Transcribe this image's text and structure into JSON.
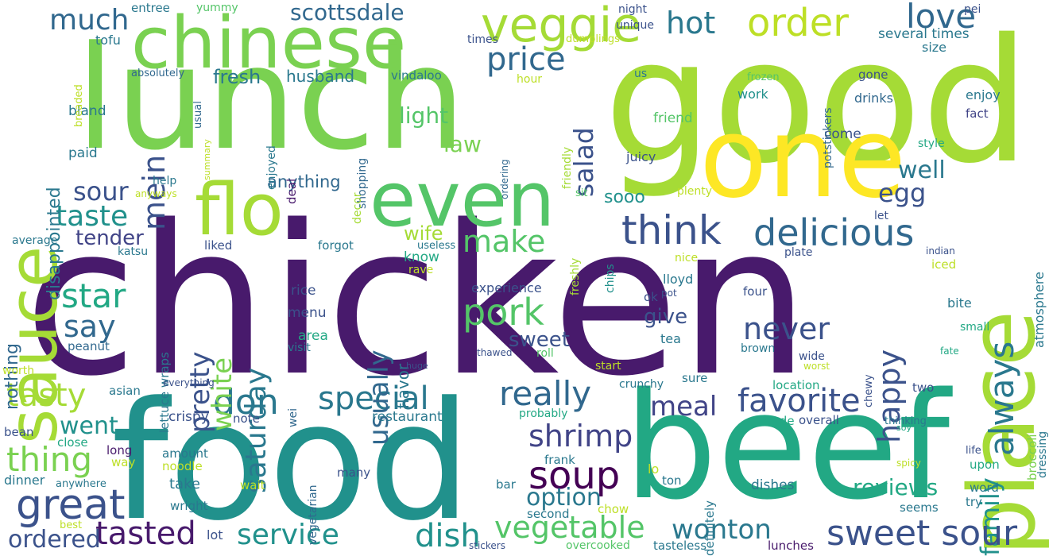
{
  "words": [
    {
      "text": "chicken",
      "color": "#481a6c",
      "weight": 1.0
    },
    {
      "text": "food",
      "color": "#21918c",
      "weight": 0.75
    },
    {
      "text": "good",
      "color": "#a5db36",
      "weight": 0.72
    },
    {
      "text": "lunch",
      "color": "#7ad151",
      "weight": 0.65
    },
    {
      "text": "beef",
      "color": "#22a884",
      "weight": 0.6
    },
    {
      "text": "one",
      "color": "#fde725",
      "weight": 0.5
    },
    {
      "text": "place",
      "color": "#a5db36",
      "weight": 0.45
    },
    {
      "text": "chinese",
      "color": "#7ad151",
      "weight": 0.38
    },
    {
      "text": "sauce",
      "color": "#a5db36",
      "weight": 0.35
    },
    {
      "text": "even",
      "color": "#54c568",
      "weight": 0.36
    },
    {
      "text": "flo",
      "color": "#a5db36",
      "weight": 0.32
    },
    {
      "text": "veggie",
      "color": "#a5db36",
      "weight": 0.2
    },
    {
      "text": "order",
      "color": "#bddf26",
      "weight": 0.18
    },
    {
      "text": "love",
      "color": "#31688e",
      "weight": 0.16
    },
    {
      "text": "hot",
      "color": "#2a788e",
      "weight": 0.14
    },
    {
      "text": "much",
      "color": "#31688e",
      "weight": 0.12
    },
    {
      "text": "scottsdale",
      "color": "#31688e",
      "weight": 0.1
    },
    {
      "text": "price",
      "color": "#31688e",
      "weight": 0.14
    },
    {
      "text": "think",
      "color": "#3b528b",
      "weight": 0.18
    },
    {
      "text": "delicious",
      "color": "#31688e",
      "weight": 0.18
    },
    {
      "text": "egg",
      "color": "#3b528b",
      "weight": 0.14
    },
    {
      "text": "mein",
      "color": "#3b528b",
      "weight": 0.12
    },
    {
      "text": "salad",
      "color": "#3b528b",
      "weight": 0.12
    },
    {
      "text": "light",
      "color": "#54c568",
      "weight": 0.1
    },
    {
      "text": "law",
      "color": "#7ad151",
      "weight": 0.1
    },
    {
      "text": "fresh",
      "color": "#2a788e",
      "weight": 0.09
    },
    {
      "text": "husband",
      "color": "#2a788e",
      "weight": 0.08
    },
    {
      "text": "sour",
      "color": "#3b528b",
      "weight": 0.12
    },
    {
      "text": "taste",
      "color": "#21918c",
      "weight": 0.14
    },
    {
      "text": "tender",
      "color": "#414487",
      "weight": 0.1
    },
    {
      "text": "star",
      "color": "#22a884",
      "weight": 0.15
    },
    {
      "text": "say",
      "color": "#31688e",
      "weight": 0.14
    },
    {
      "text": "make",
      "color": "#54c568",
      "weight": 0.14
    },
    {
      "text": "pork",
      "color": "#54c568",
      "weight": 0.18
    },
    {
      "text": "really",
      "color": "#31688e",
      "weight": 0.17
    },
    {
      "text": "favorite",
      "color": "#3b528b",
      "weight": 0.17
    },
    {
      "text": "tasty",
      "color": "#a5db36",
      "weight": 0.15
    },
    {
      "text": "don",
      "color": "#2a788e",
      "weight": 0.18
    },
    {
      "text": "special",
      "color": "#2a788e",
      "weight": 0.16
    },
    {
      "text": "meal",
      "color": "#414487",
      "weight": 0.13
    },
    {
      "text": "thing",
      "color": "#7ad151",
      "weight": 0.18
    },
    {
      "text": "great",
      "color": "#3b528b",
      "weight": 0.2
    },
    {
      "text": "shrimp",
      "color": "#414487",
      "weight": 0.16
    },
    {
      "text": "soup",
      "color": "#440154",
      "weight": 0.18
    },
    {
      "text": "family",
      "color": "#21918c",
      "weight": 0.14
    },
    {
      "text": "tasted",
      "color": "#481a6c",
      "weight": 0.15
    },
    {
      "text": "service",
      "color": "#21918c",
      "weight": 0.14
    },
    {
      "text": "dish",
      "color": "#21918c",
      "weight": 0.15
    },
    {
      "text": "vegetable",
      "color": "#54c568",
      "weight": 0.14
    },
    {
      "text": "wonton",
      "color": "#2a788e",
      "weight": 0.14
    },
    {
      "text": "sweet sour",
      "color": "#3b528b",
      "weight": 0.18
    },
    {
      "text": "option",
      "color": "#2a788e",
      "weight": 0.1
    },
    {
      "text": "reviews",
      "color": "#22a884",
      "weight": 0.1
    },
    {
      "text": "never",
      "color": "#3b528b",
      "weight": 0.15
    },
    {
      "text": "happy",
      "color": "#3b528b",
      "weight": 0.14
    },
    {
      "text": "always",
      "color": "#2a788e",
      "weight": 0.13
    },
    {
      "text": "saturday",
      "color": "#2a788e",
      "weight": 0.13
    },
    {
      "text": "usually",
      "color": "#31688e",
      "weight": 0.13
    },
    {
      "text": "pretty",
      "color": "#3b528b",
      "weight": 0.12
    },
    {
      "text": "white",
      "color": "#7ad151",
      "weight": 0.12
    },
    {
      "text": "ordered",
      "color": "#3b528b",
      "weight": 0.1
    },
    {
      "text": "went",
      "color": "#21918c",
      "weight": 0.12
    },
    {
      "text": "well",
      "color": "#2a788e",
      "weight": 0.1
    },
    {
      "text": "sweet",
      "color": "#3b528b",
      "weight": 0.1
    },
    {
      "text": "give",
      "color": "#3b528b",
      "weight": 0.09
    },
    {
      "text": "flavor",
      "color": "#2a788e",
      "weight": 0.08
    },
    {
      "text": "wife",
      "color": "#a5db36",
      "weight": 0.09
    },
    {
      "text": "sooo",
      "color": "#21918c",
      "weight": 0.08
    },
    {
      "text": "anything",
      "color": "#31688e",
      "weight": 0.07
    },
    {
      "text": "disappointed",
      "color": "#2a788e",
      "weight": 0.08
    },
    {
      "text": "nothing",
      "color": "#31688e",
      "weight": 0.08
    },
    {
      "text": "bland",
      "color": "#2a788e",
      "weight": 0.06
    },
    {
      "text": "paid",
      "color": "#2a788e",
      "weight": 0.06
    },
    {
      "text": "tofu",
      "color": "#2a788e",
      "weight": 0.06
    },
    {
      "text": "entree",
      "color": "#2a788e",
      "weight": 0.06
    },
    {
      "text": "yummy",
      "color": "#54c568",
      "weight": 0.06
    },
    {
      "text": "breaded",
      "color": "#bddf26",
      "weight": 0.05
    },
    {
      "text": "absolutely",
      "color": "#31688e",
      "weight": 0.05
    },
    {
      "text": "usual",
      "color": "#31688e",
      "weight": 0.05
    },
    {
      "text": "vindaloo",
      "color": "#2a788e",
      "weight": 0.06
    },
    {
      "text": "hour",
      "color": "#bddf26",
      "weight": 0.05
    },
    {
      "text": "night",
      "color": "#3b528b",
      "weight": 0.05
    },
    {
      "text": "unique",
      "color": "#3b528b",
      "weight": 0.05
    },
    {
      "text": "times",
      "color": "#3b528b",
      "weight": 0.05
    },
    {
      "text": "dumplings",
      "color": "#bddf26",
      "weight": 0.05
    },
    {
      "text": "several times",
      "color": "#2a788e",
      "weight": 0.06
    },
    {
      "text": "size",
      "color": "#2a788e",
      "weight": 0.06
    },
    {
      "text": "pei",
      "color": "#3b528b",
      "weight": 0.05
    },
    {
      "text": "frozen",
      "color": "#54c568",
      "weight": 0.05
    },
    {
      "text": "gone",
      "color": "#3b528b",
      "weight": 0.05
    },
    {
      "text": "drinks",
      "color": "#31688e",
      "weight": 0.06
    },
    {
      "text": "enjoy",
      "color": "#2a788e",
      "weight": 0.06
    },
    {
      "text": "fact",
      "color": "#414487",
      "weight": 0.05
    },
    {
      "text": "style",
      "color": "#22a884",
      "weight": 0.05
    },
    {
      "text": "us",
      "color": "#2a788e",
      "weight": 0.05
    },
    {
      "text": "work",
      "color": "#21918c",
      "weight": 0.06
    },
    {
      "text": "friend",
      "color": "#54c568",
      "weight": 0.06
    },
    {
      "text": "come",
      "color": "#3b528b",
      "weight": 0.06
    },
    {
      "text": "juicy",
      "color": "#3b528b",
      "weight": 0.06
    },
    {
      "text": "potstickers",
      "color": "#31688e",
      "weight": 0.05
    },
    {
      "text": "friendly",
      "color": "#a5db36",
      "weight": 0.05
    },
    {
      "text": "ordering",
      "color": "#31688e",
      "weight": 0.04
    },
    {
      "text": "shopping",
      "color": "#31688e",
      "weight": 0.05
    },
    {
      "text": "decor",
      "color": "#a5db36",
      "weight": 0.05
    },
    {
      "text": "enjoyed",
      "color": "#2a788e",
      "weight": 0.05
    },
    {
      "text": "deal",
      "color": "#481a6c",
      "weight": 0.06
    },
    {
      "text": "summary",
      "color": "#bddf26",
      "weight": 0.04
    },
    {
      "text": "help",
      "color": "#2a788e",
      "weight": 0.05
    },
    {
      "text": "anyways",
      "color": "#bddf26",
      "weight": 0.04
    },
    {
      "text": "average",
      "color": "#2a788e",
      "weight": 0.05
    },
    {
      "text": "katsu",
      "color": "#2a788e",
      "weight": 0.05
    },
    {
      "text": "liked",
      "color": "#3b528b",
      "weight": 0.05
    },
    {
      "text": "forgot",
      "color": "#2a788e",
      "weight": 0.05
    },
    {
      "text": "know",
      "color": "#22a884",
      "weight": 0.06
    },
    {
      "text": "rave",
      "color": "#bddf26",
      "weight": 0.05
    },
    {
      "text": "useless",
      "color": "#2a788e",
      "weight": 0.05
    },
    {
      "text": "rice",
      "color": "#3b528b",
      "weight": 0.06
    },
    {
      "text": "menu",
      "color": "#3b528b",
      "weight": 0.06
    },
    {
      "text": "area",
      "color": "#22a884",
      "weight": 0.06
    },
    {
      "text": "visit",
      "color": "#2a788e",
      "weight": 0.05
    },
    {
      "text": "lettuce wraps",
      "color": "#2a788e",
      "weight": 0.06
    },
    {
      "text": "peanut",
      "color": "#31688e",
      "weight": 0.05
    },
    {
      "text": "worth",
      "color": "#bddf26",
      "weight": 0.05
    },
    {
      "text": "asian",
      "color": "#2a788e",
      "weight": 0.05
    },
    {
      "text": "everything",
      "color": "#3b528b",
      "weight": 0.04
    },
    {
      "text": "experience",
      "color": "#3b528b",
      "weight": 0.06
    },
    {
      "text": "tea",
      "color": "#2a788e",
      "weight": 0.06
    },
    {
      "text": "thawed",
      "color": "#3b528b",
      "weight": 0.05
    },
    {
      "text": "roll",
      "color": "#54c568",
      "weight": 0.05
    },
    {
      "text": "huge",
      "color": "#3b528b",
      "weight": 0.04
    },
    {
      "text": "start",
      "color": "#bddf26",
      "weight": 0.05
    },
    {
      "text": "crunchy",
      "color": "#2a788e",
      "weight": 0.05
    },
    {
      "text": "sure",
      "color": "#2a788e",
      "weight": 0.06
    },
    {
      "text": "freshly",
      "color": "#a5db36",
      "weight": 0.05
    },
    {
      "text": "sit",
      "color": "#54c568",
      "weight": 0.05
    },
    {
      "text": "chips",
      "color": "#21918c",
      "weight": 0.05
    },
    {
      "text": "plenty",
      "color": "#bddf26",
      "weight": 0.05
    },
    {
      "text": "nice",
      "color": "#bddf26",
      "weight": 0.05
    },
    {
      "text": "lloyd",
      "color": "#2a788e",
      "weight": 0.05
    },
    {
      "text": "ok",
      "color": "#3b528b",
      "weight": 0.05
    },
    {
      "text": "pot",
      "color": "#3b528b",
      "weight": 0.04
    },
    {
      "text": "four",
      "color": "#3b528b",
      "weight": 0.06
    },
    {
      "text": "brown",
      "color": "#2a788e",
      "weight": 0.05
    },
    {
      "text": "wide",
      "color": "#3b528b",
      "weight": 0.05
    },
    {
      "text": "chewy",
      "color": "#3b528b",
      "weight": 0.04
    },
    {
      "text": "let",
      "color": "#3b528b",
      "weight": 0.05
    },
    {
      "text": "plate",
      "color": "#3b528b",
      "weight": 0.05
    },
    {
      "text": "indian",
      "color": "#3b528b",
      "weight": 0.04
    },
    {
      "text": "iced",
      "color": "#bddf26",
      "weight": 0.05
    },
    {
      "text": "atmosphere",
      "color": "#2a788e",
      "weight": 0.05
    },
    {
      "text": "bite",
      "color": "#2a788e",
      "weight": 0.06
    },
    {
      "text": "small",
      "color": "#22a884",
      "weight": 0.05
    },
    {
      "text": "fate",
      "color": "#22a884",
      "weight": 0.04
    },
    {
      "text": "worst",
      "color": "#bddf26",
      "weight": 0.04
    },
    {
      "text": "broccoli",
      "color": "#7ad151",
      "weight": 0.05
    },
    {
      "text": "dressing",
      "color": "#2a788e",
      "weight": 0.05
    },
    {
      "text": "location",
      "color": "#22a884",
      "weight": 0.05
    },
    {
      "text": "two",
      "color": "#3b528b",
      "weight": 0.05
    },
    {
      "text": "made",
      "color": "#22a884",
      "weight": 0.05
    },
    {
      "text": "overall",
      "color": "#3b528b",
      "weight": 0.05
    },
    {
      "text": "thinking",
      "color": "#2a788e",
      "weight": 0.04
    },
    {
      "text": "soy",
      "color": "#22a884",
      "weight": 0.04
    },
    {
      "text": "life",
      "color": "#3b528b",
      "weight": 0.04
    },
    {
      "text": "spicy",
      "color": "#bddf26",
      "weight": 0.04
    },
    {
      "text": "upon",
      "color": "#22a884",
      "weight": 0.05
    },
    {
      "text": "word",
      "color": "#2a788e",
      "weight": 0.05
    },
    {
      "text": "try",
      "color": "#2a788e",
      "weight": 0.05
    },
    {
      "text": "seems",
      "color": "#2a788e",
      "weight": 0.05
    },
    {
      "text": "probably",
      "color": "#22a884",
      "weight": 0.05
    },
    {
      "text": "frank",
      "color": "#2a788e",
      "weight": 0.05
    },
    {
      "text": "lo",
      "color": "#bddf26",
      "weight": 0.05
    },
    {
      "text": "ton",
      "color": "#2a788e",
      "weight": 0.05
    },
    {
      "text": "definitely",
      "color": "#2a788e",
      "weight": 0.05
    },
    {
      "text": "dishes",
      "color": "#2a788e",
      "weight": 0.06
    },
    {
      "text": "second",
      "color": "#2a788e",
      "weight": 0.05
    },
    {
      "text": "chow",
      "color": "#bddf26",
      "weight": 0.05
    },
    {
      "text": "bar",
      "color": "#2a788e",
      "weight": 0.05
    },
    {
      "text": "vegetarian",
      "color": "#31688e",
      "weight": 0.05
    },
    {
      "text": "wei",
      "color": "#31688e",
      "weight": 0.05
    },
    {
      "text": "restaurant",
      "color": "#2a788e",
      "weight": 0.06
    },
    {
      "text": "crispy",
      "color": "#3b528b",
      "weight": 0.06
    },
    {
      "text": "note",
      "color": "#3b528b",
      "weight": 0.05
    },
    {
      "text": "bean",
      "color": "#3b528b",
      "weight": 0.05
    },
    {
      "text": "close",
      "color": "#22a884",
      "weight": 0.05
    },
    {
      "text": "long",
      "color": "#481a6c",
      "weight": 0.05
    },
    {
      "text": "way",
      "color": "#bddf26",
      "weight": 0.05
    },
    {
      "text": "amount",
      "color": "#2a788e",
      "weight": 0.05
    },
    {
      "text": "noodle",
      "color": "#bddf26",
      "weight": 0.05
    },
    {
      "text": "dinner",
      "color": "#2a788e",
      "weight": 0.06
    },
    {
      "text": "anywhere",
      "color": "#2a788e",
      "weight": 0.04
    },
    {
      "text": "take",
      "color": "#2a788e",
      "weight": 0.06
    },
    {
      "text": "wait",
      "color": "#bddf26",
      "weight": 0.05
    },
    {
      "text": "many",
      "color": "#3b528b",
      "weight": 0.05
    },
    {
      "text": "wright",
      "color": "#2a788e",
      "weight": 0.05
    },
    {
      "text": "lot",
      "color": "#3b528b",
      "weight": 0.05
    },
    {
      "text": "best",
      "color": "#bddf26",
      "weight": 0.05
    },
    {
      "text": "stickers",
      "color": "#3b528b",
      "weight": 0.04
    },
    {
      "text": "overcooked",
      "color": "#54c568",
      "weight": 0.05
    },
    {
      "text": "tasteless",
      "color": "#2a788e",
      "weight": 0.05
    },
    {
      "text": "lunches",
      "color": "#481a6c",
      "weight": 0.05
    }
  ]
}
